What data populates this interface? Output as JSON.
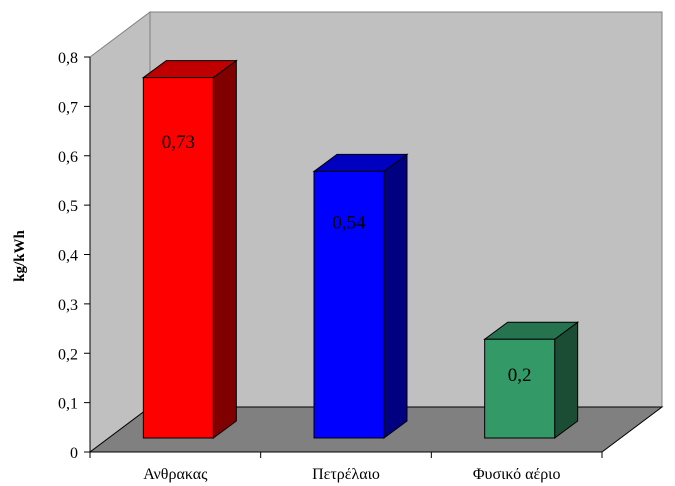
{
  "chart_data": {
    "type": "bar",
    "categories": [
      "Ανθρακας",
      "Πετρέλαιο",
      "Φυσικό αέριο"
    ],
    "values": [
      0.73,
      0.54,
      0.2
    ],
    "data_labels": [
      "0,73",
      "0,54",
      "0,2"
    ],
    "ylabel": "kg/kWh",
    "ylim": [
      0,
      0.8
    ],
    "y_ticks": [
      0,
      0.1,
      0.2,
      0.3,
      0.4,
      0.5,
      0.6,
      0.7,
      0.8
    ],
    "y_tick_labels": [
      "0",
      "0,1",
      "0,2",
      "0,3",
      "0,4",
      "0,5",
      "0,6",
      "0,7",
      "0,8"
    ],
    "grid": false,
    "three_d": true,
    "colors": {
      "background_wall": "#c0c0c0",
      "floor": "#808080",
      "bars": [
        {
          "front": "#ff0000",
          "top": "#c00000",
          "side": "#800000"
        },
        {
          "front": "#0000ff",
          "top": "#0000c0",
          "side": "#000080"
        },
        {
          "front": "#339966",
          "top": "#267350",
          "side": "#1a4d33"
        }
      ]
    }
  }
}
